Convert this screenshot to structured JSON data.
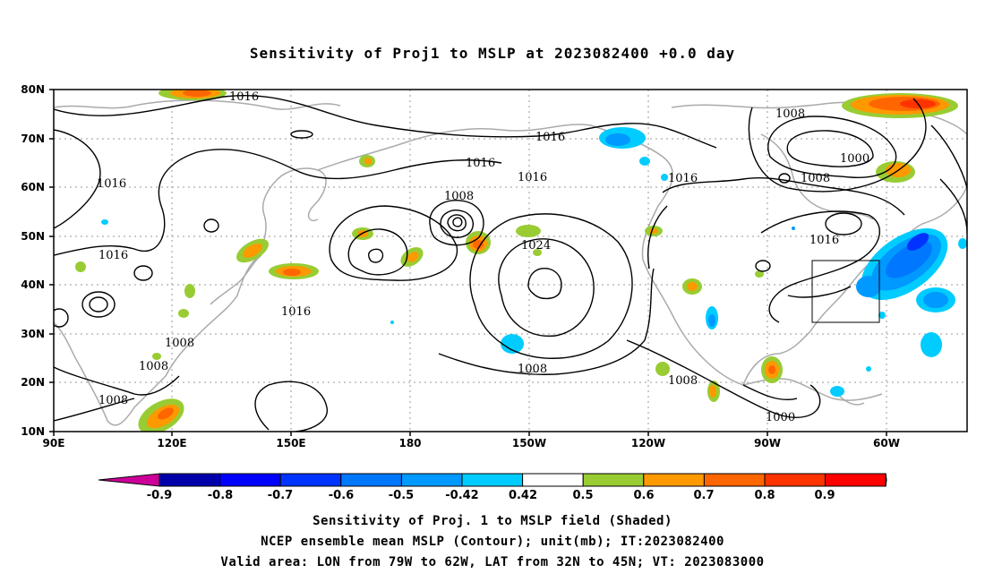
{
  "title": "Sensitivity of Proj1 to MSLP at 2023082400 +0.0 day",
  "map": {
    "lat_labels": [
      "80N",
      "70N",
      "60N",
      "50N",
      "40N",
      "30N",
      "20N",
      "10N"
    ],
    "lon_labels": [
      "90E",
      "120E",
      "150E",
      "180",
      "150W",
      "120W",
      "90W",
      "60W"
    ],
    "grid": "dotted",
    "valid_box": {
      "lon_from": "79W",
      "lon_to": "62W",
      "lat_from": "32N",
      "lat_to": "45N"
    },
    "contour_labels": [
      "1016",
      "1016",
      "1016",
      "1016",
      "1016",
      "1016",
      "1016",
      "1016",
      "1016",
      "1008",
      "1008",
      "1008",
      "1008",
      "1008",
      "1008",
      "1008",
      "1008",
      "1000",
      "1024"
    ],
    "colors": {
      "coast": "#aaaaaa",
      "contour": "#000000",
      "green": "#99cc33",
      "orange": "#ff9900",
      "dark_orange": "#ff6600",
      "red_orange": "#ff3300",
      "light_blue": "#00ccff",
      "blue": "#0099ff",
      "mid_blue": "#0066ff",
      "deep_blue": "#0033ff"
    }
  },
  "colorbar": {
    "labels": [
      "-0.9",
      "-0.8",
      "-0.7",
      "-0.6",
      "-0.5",
      "-0.42",
      "0.42",
      "0.5",
      "0.6",
      "0.7",
      "0.8",
      "0.9"
    ],
    "colors": [
      "#cc0099",
      "#0000aa",
      "#0000ff",
      "#0033ff",
      "#0077ff",
      "#0099ff",
      "#00ccff",
      "#ffffff",
      "#99cc33",
      "#ff9900",
      "#ff6600",
      "#ff3300",
      "#ff0000",
      "#ff99cc"
    ]
  },
  "captions": {
    "line1": "Sensitivity of Proj. 1 to MSLP field (Shaded)",
    "line2": "NCEP ensemble mean MSLP (Contour); unit(mb); IT:2023082400",
    "line3": "Valid area: LON from 79W to 62W, LAT from 32N to 45N; VT: 2023083000"
  }
}
